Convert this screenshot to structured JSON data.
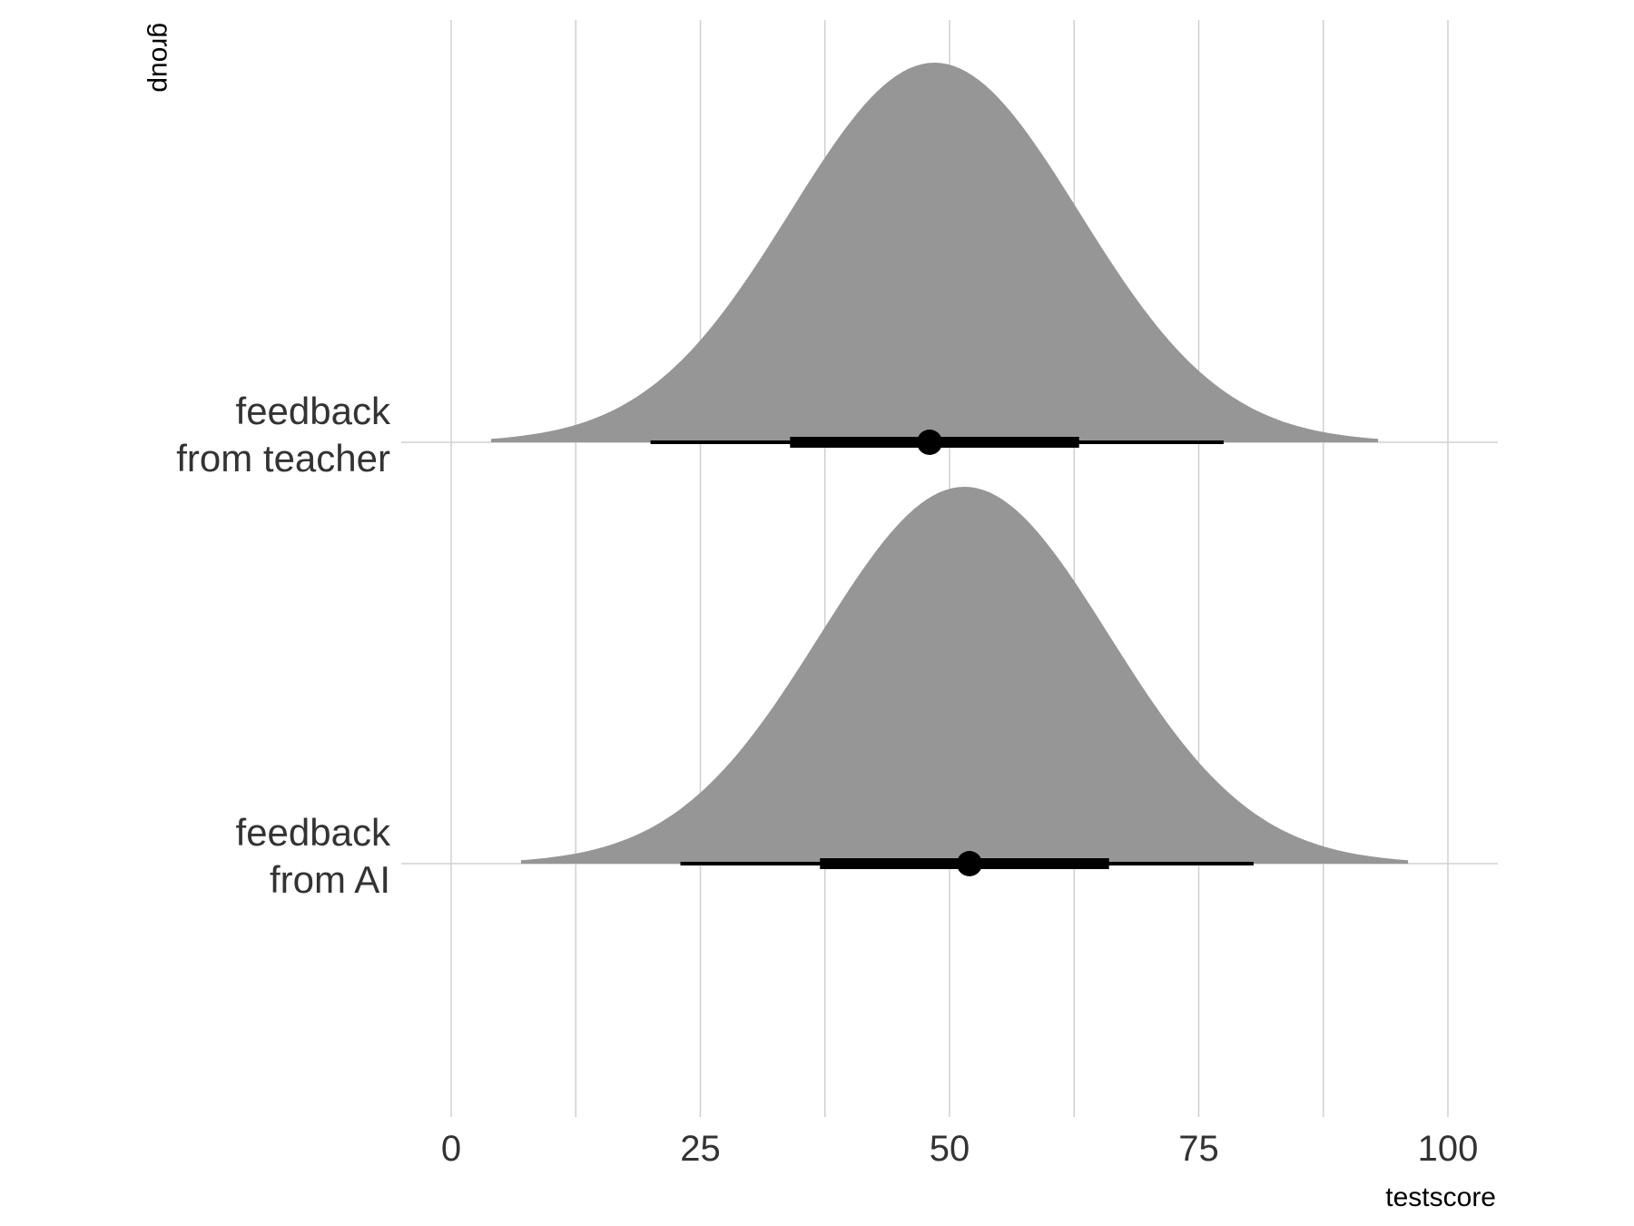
{
  "chart_data": {
    "type": "halfeye",
    "xlabel": "testscore",
    "ylabel": "group",
    "xlim": [
      -5,
      105
    ],
    "x_ticks": [
      0,
      25,
      50,
      75,
      100
    ],
    "x_tick_labels": [
      "0",
      "25",
      "50",
      "75",
      "100"
    ],
    "x_minor_gridlines": [
      12.5,
      37.5,
      62.5,
      87.5
    ],
    "grid": true,
    "categories": [
      {
        "label_lines": [
          "feedback",
          "from teacher"
        ],
        "distribution": {
          "mean": 48.5,
          "sd": 14.5,
          "range": [
            4,
            93
          ]
        },
        "point": 48,
        "interval_66": [
          34,
          63
        ],
        "interval_95": [
          20,
          77.5
        ]
      },
      {
        "label_lines": [
          "feedback",
          "from AI"
        ],
        "distribution": {
          "mean": 51.5,
          "sd": 14.5,
          "range": [
            7,
            96
          ]
        },
        "point": 52,
        "interval_66": [
          37,
          66
        ],
        "interval_95": [
          23,
          80.5
        ]
      }
    ],
    "colors": {
      "density": "#969696",
      "interval": "#000000",
      "gridline": "#d0d0d0"
    }
  }
}
